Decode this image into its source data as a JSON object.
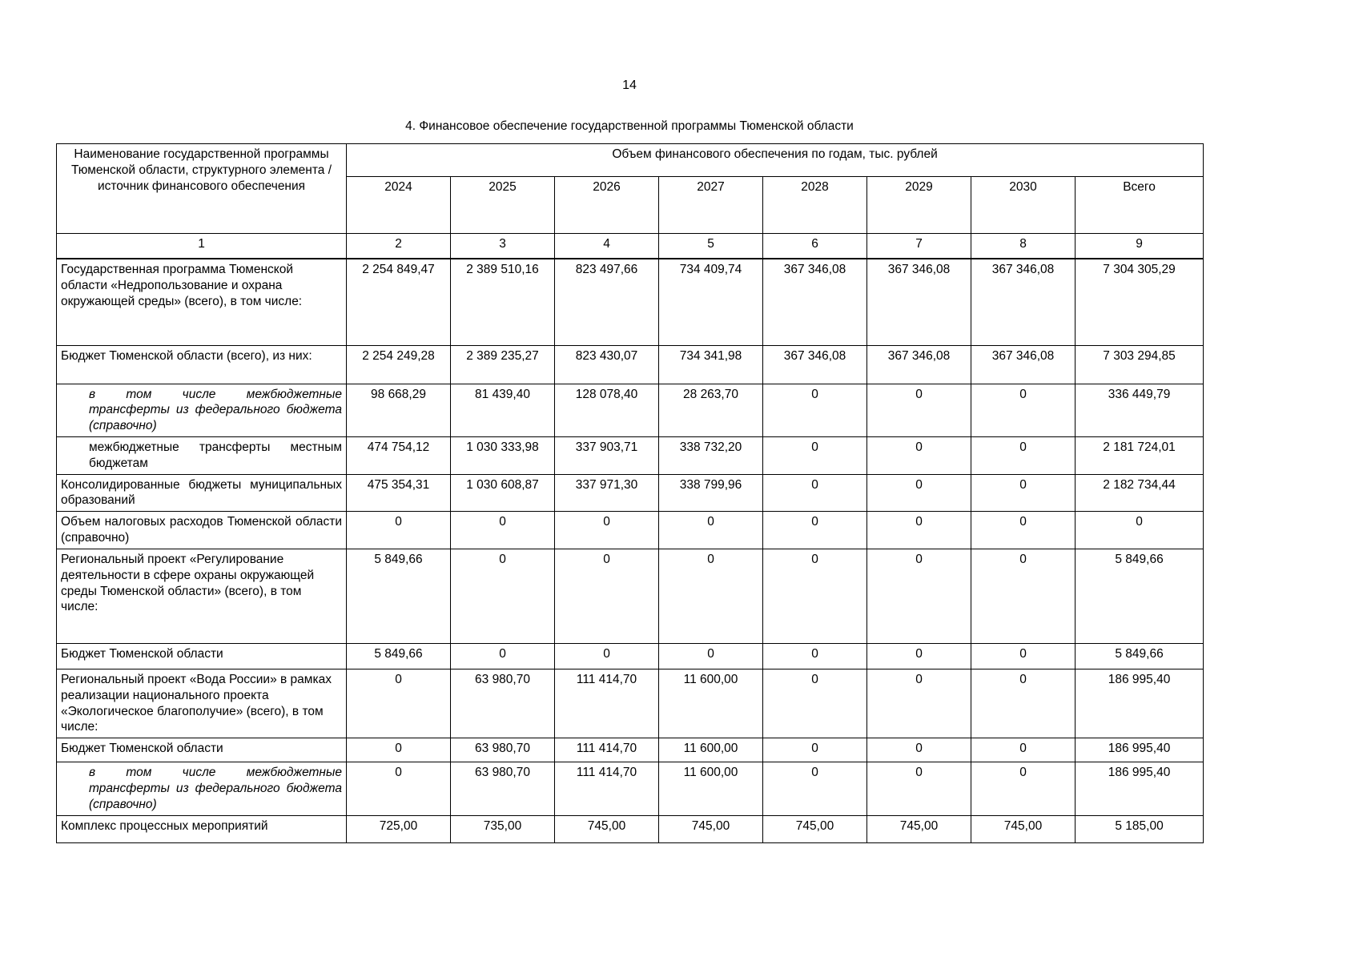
{
  "page": {
    "number": "14",
    "title": "4. Финансовое обеспечение государственной программы Тюменской области"
  },
  "table": {
    "header": {
      "name_column": "Наименование государственной программы Тюменской области, структурного элемента / источник финансового обеспечения",
      "group_title": "Объем финансового обеспечения по годам, тыс. рублей",
      "year_columns": [
        "2024",
        "2025",
        "2026",
        "2027",
        "2028",
        "2029",
        "2030",
        "Всего"
      ],
      "index_row": [
        "1",
        "2",
        "3",
        "4",
        "5",
        "6",
        "7",
        "8",
        "9"
      ]
    },
    "rows": [
      {
        "label": "Государственная программа Тюменской области «Недропользование и охрана окружающей среды» (всего), в том числе:",
        "bold": true,
        "italic": false,
        "indent": false,
        "justify": false,
        "min_height": 108,
        "values": [
          "2 254 849,47",
          "2 389 510,16",
          "823 497,66",
          "734 409,74",
          "367 346,08",
          "367 346,08",
          "367 346,08",
          "7 304 305,29"
        ]
      },
      {
        "label": "Бюджет Тюменской области (всего), из них:",
        "bold": false,
        "italic": false,
        "indent": false,
        "justify": true,
        "min_height": 48,
        "values": [
          "2 254 249,28",
          "2 389 235,27",
          "823 430,07",
          "734 341,98",
          "367 346,08",
          "367 346,08",
          "367 346,08",
          "7 303 294,85"
        ]
      },
      {
        "label": "в том числе межбюджетные трансферты из федерального бюджета (справочно)",
        "bold": false,
        "italic": true,
        "indent": true,
        "justify": true,
        "min_height": 66,
        "values": [
          "98 668,29",
          "81 439,40",
          "128 078,40",
          "28 263,70",
          "0",
          "0",
          "0",
          "336 449,79"
        ]
      },
      {
        "label": "межбюджетные трансферты местным бюджетам",
        "bold": false,
        "italic": false,
        "indent": true,
        "justify": true,
        "min_height": 46,
        "values": [
          "474 754,12",
          "1 030 333,98",
          "337 903,71",
          "338 732,20",
          "0",
          "0",
          "0",
          "2 181 724,01"
        ]
      },
      {
        "label": "Консолидированные бюджеты муниципальных образований",
        "bold": false,
        "italic": false,
        "indent": false,
        "justify": true,
        "min_height": 44,
        "values": [
          "475 354,31",
          "1 030 608,87",
          "337 971,30",
          "338 799,96",
          "0",
          "0",
          "0",
          "2 182 734,44"
        ]
      },
      {
        "label": "Объем налоговых расходов Тюменской области (справочно)",
        "bold": false,
        "italic": false,
        "indent": false,
        "justify": true,
        "min_height": 44,
        "values": [
          "0",
          "0",
          "0",
          "0",
          "0",
          "0",
          "0",
          "0"
        ]
      },
      {
        "label": "Региональный проект «Регулирование деятельности в сфере охраны окружающей среды Тюменской области» (всего), в том числе:",
        "bold": true,
        "italic": false,
        "indent": false,
        "justify": false,
        "min_height": 118,
        "values": [
          "5 849,66",
          "0",
          "0",
          "0",
          "0",
          "0",
          "0",
          "5 849,66"
        ]
      },
      {
        "label": "Бюджет Тюменской области",
        "bold": false,
        "italic": false,
        "indent": false,
        "justify": false,
        "min_height": 32,
        "values": [
          "5 849,66",
          "0",
          "0",
          "0",
          "0",
          "0",
          "0",
          "5 849,66"
        ]
      },
      {
        "label": "Региональный проект «Вода России» в рамках реализации национального проекта «Экологическое благополучие» (всего), в том числе:",
        "bold": true,
        "italic": false,
        "indent": false,
        "justify": false,
        "min_height": 86,
        "values": [
          "0",
          "63 980,70",
          "111 414,70",
          "11 600,00",
          "0",
          "0",
          "0",
          "186 995,40"
        ]
      },
      {
        "label": "Бюджет Тюменской области",
        "bold": false,
        "italic": false,
        "indent": false,
        "justify": false,
        "min_height": 30,
        "values": [
          "0",
          "63 980,70",
          "111 414,70",
          "11 600,00",
          "0",
          "0",
          "0",
          "186 995,40"
        ]
      },
      {
        "label": "в том числе межбюджетные трансферты из федерального бюджета (справочно)",
        "bold": false,
        "italic": true,
        "indent": true,
        "justify": true,
        "min_height": 66,
        "values": [
          "0",
          "63 980,70",
          "111 414,70",
          "11 600,00",
          "0",
          "0",
          "0",
          "186 995,40"
        ]
      },
      {
        "label": "Комплекс процессных мероприятий",
        "bold": true,
        "italic": false,
        "indent": false,
        "justify": false,
        "min_height": 34,
        "values": [
          "725,00",
          "735,00",
          "745,00",
          "745,00",
          "745,00",
          "745,00",
          "745,00",
          "5 185,00"
        ]
      }
    ]
  }
}
